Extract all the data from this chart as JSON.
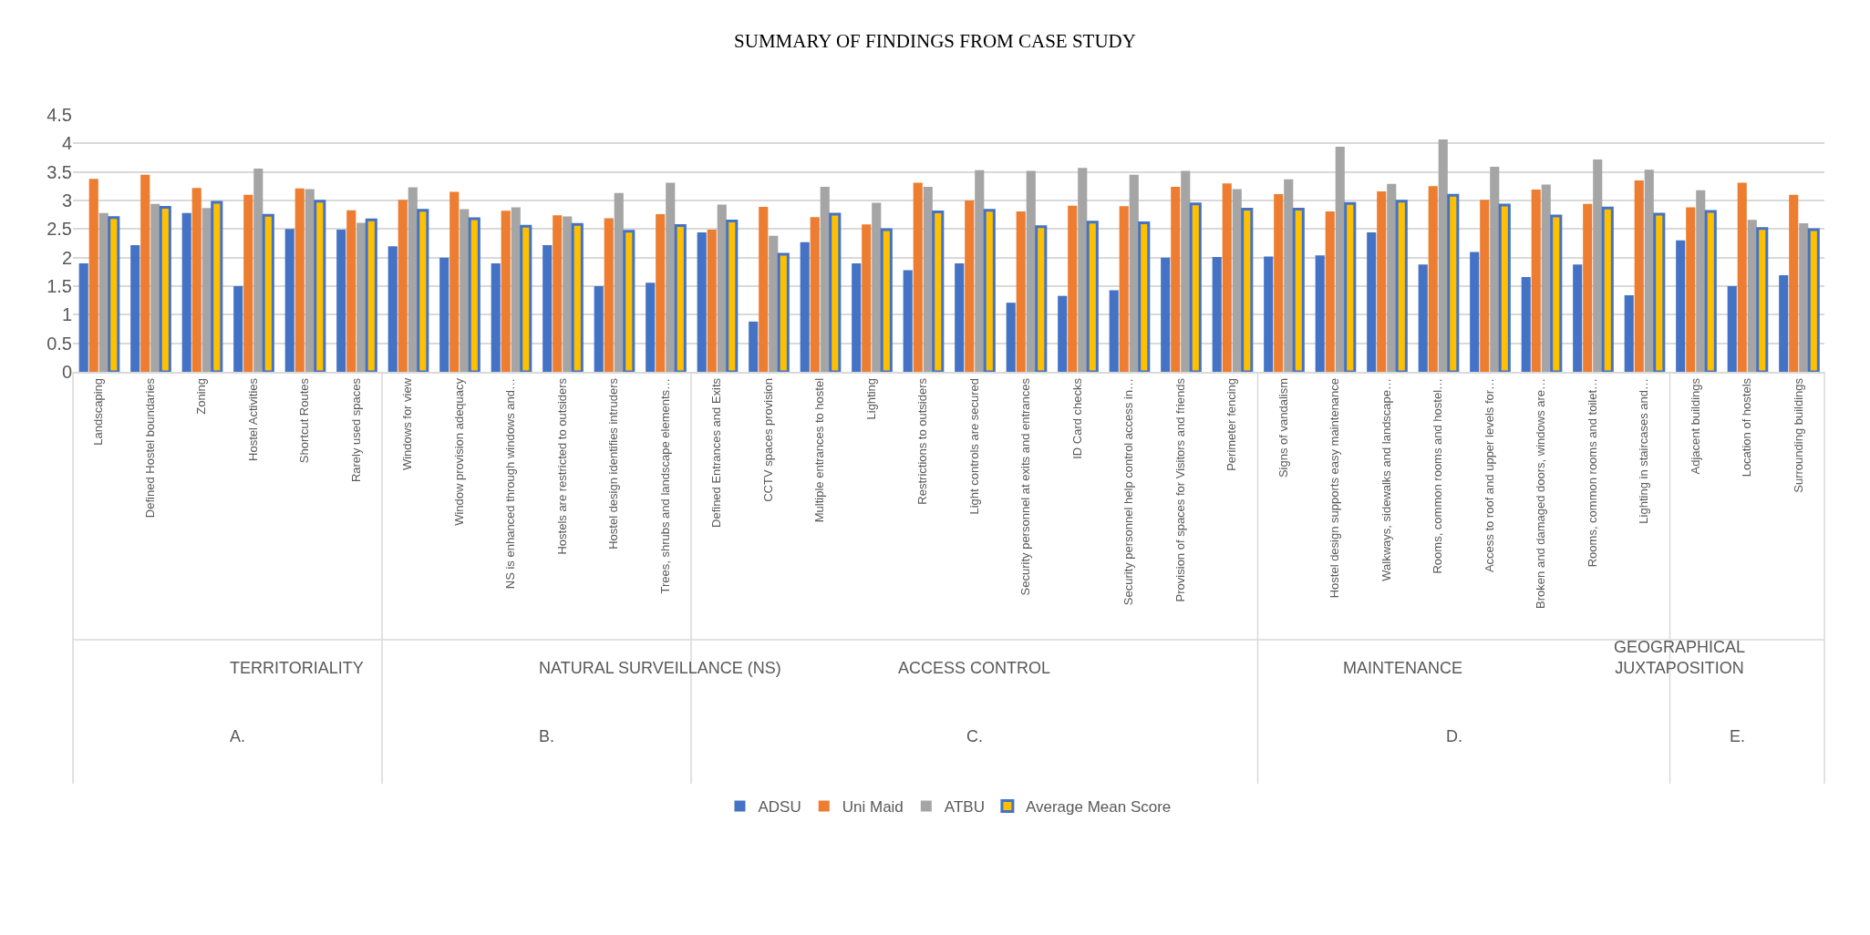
{
  "chart_data": [
    {
      "type": "bar",
      "xlabel": "TERRITORIALITY",
      "annotations": [
        "A."
      ],
      "categories": [
        "Landscaping",
        "Defined Hostel boundaries",
        "Zoning",
        "Hostel Activities",
        "Shortcut Routes",
        "Rarely used spaces"
      ],
      "series": [
        {
          "name": "ADSU",
          "color": "#4472c4",
          "values": [
            1.9,
            2.22,
            2.78,
            1.5,
            2.5,
            2.49
          ]
        },
        {
          "name": "Uni Maid",
          "color": "#ed7d31",
          "values": [
            3.38,
            3.45,
            3.22,
            3.1,
            3.21,
            2.83
          ]
        },
        {
          "name": "ATBU",
          "color": "#a5a5a5",
          "values": [
            2.78,
            2.94,
            2.87,
            3.56,
            3.2,
            2.61
          ]
        },
        {
          "name": "Average Mean Score",
          "color": "#ffc000",
          "values": [
            2.7,
            2.88,
            2.97,
            2.74,
            2.99,
            2.66
          ]
        }
      ],
      "ylim": [
        0,
        4.5
      ],
      "yticks": [
        0,
        0.5,
        1,
        1.5,
        2,
        2.5,
        3,
        3.5,
        4,
        4.5
      ],
      "grid": "y",
      "legend": "bottom"
    },
    {
      "type": "bar",
      "xlabel": "NATURAL SURVEILLANCE (NS)",
      "annotations": [
        "B."
      ],
      "categories": [
        "Windows for view",
        "Window provision adequacy",
        "NS is enhanced through windows and…",
        "Hostels are restricted to outsiders",
        "Hostel design identifies intruders",
        "Trees, shrubs and landscape elements…"
      ],
      "series": [
        {
          "name": "ADSU",
          "color": "#4472c4",
          "values": [
            2.2,
            2.0,
            1.9,
            2.22,
            1.5,
            1.56
          ]
        },
        {
          "name": "Uni Maid",
          "color": "#ed7d31",
          "values": [
            3.01,
            3.15,
            2.82,
            2.74,
            2.69,
            2.76
          ]
        },
        {
          "name": "ATBU",
          "color": "#a5a5a5",
          "values": [
            3.23,
            2.85,
            2.88,
            2.72,
            3.13,
            3.31
          ]
        },
        {
          "name": "Average Mean Score",
          "color": "#ffc000",
          "values": [
            2.83,
            2.68,
            2.55,
            2.58,
            2.46,
            2.56
          ]
        }
      ],
      "ylim": [
        0,
        4.5
      ],
      "yticks": [
        0,
        0.5,
        1,
        1.5,
        2,
        2.5,
        3,
        3.5,
        4,
        4.5
      ],
      "tick_labels": "x",
      "grid": "y",
      "legend": "bottom"
    },
    {
      "type": "bar",
      "title": "SUMMARY OF FINDINGS FROM CASE STUDY",
      "xlabel": "ACCESS CONTROL",
      "annotations": [
        "C."
      ],
      "categories": [
        "Defined Entrances and Exits",
        "CCTV spaces provision",
        "Multiple entrances to hostel",
        "Lighting",
        "Restrictions to outsiders",
        "Light controls are secured",
        "Security personnel at exits and entrances",
        "ID Card checks",
        "Security personnel help control access in…",
        "Provision of spaces for Visitors and friends",
        "Perimeter fencing"
      ],
      "series": [
        {
          "name": "ADSU",
          "color": "#4472c4",
          "values": [
            2.44,
            0.88,
            2.27,
            1.9,
            1.78,
            1.9,
            1.21,
            1.33,
            1.43,
            2.0,
            2.01
          ]
        },
        {
          "name": "Uni Maid",
          "color": "#ed7d31",
          "values": [
            2.49,
            2.89,
            2.71,
            2.58,
            3.31,
            3.0,
            2.81,
            2.91,
            2.9,
            3.24,
            3.3
          ]
        },
        {
          "name": "ATBU",
          "color": "#a5a5a5",
          "values": [
            2.93,
            2.38,
            3.24,
            2.96,
            3.24,
            3.53,
            3.52,
            3.57,
            3.45,
            3.52,
            3.2
          ]
        },
        {
          "name": "Average Mean Score",
          "color": "#ffc000",
          "values": [
            2.64,
            2.06,
            2.76,
            2.49,
            2.8,
            2.83,
            2.54,
            2.62,
            2.61,
            2.94,
            2.85
          ]
        }
      ],
      "ylim": [
        0,
        4.5
      ],
      "yticks": [
        0,
        0.5,
        1,
        1.5,
        2,
        2.5,
        3,
        3.5,
        4,
        4.5
      ],
      "tick_labels": "x",
      "grid": "y",
      "legend": "bottom"
    },
    {
      "type": "bar",
      "xlabel": "MAINTENANCE",
      "annotations": [
        "D."
      ],
      "categories": [
        "Signs of vandalism",
        "Hostel design supports easy maintenance",
        "Walkways, sidewalks and landscape…",
        "Rooms, common rooms and hostel…",
        "Access to roof and upper levels for…",
        "Broken and damaged doors, windows are…",
        "Rooms, common rooms and toilet…",
        "Lighting in staircases and…"
      ],
      "series": [
        {
          "name": "ADSU",
          "color": "#4472c4",
          "values": [
            2.02,
            2.04,
            2.44,
            1.88,
            2.1,
            1.66,
            1.88,
            1.34
          ]
        },
        {
          "name": "Uni Maid",
          "color": "#ed7d31",
          "values": [
            3.11,
            2.81,
            3.16,
            3.25,
            3.01,
            3.19,
            2.94,
            3.35
          ]
        },
        {
          "name": "ATBU",
          "color": "#a5a5a5",
          "values": [
            3.37,
            3.94,
            3.29,
            4.07,
            3.59,
            3.28,
            3.72,
            3.54
          ]
        },
        {
          "name": "Average Mean Score",
          "color": "#ffc000",
          "values": [
            2.85,
            2.95,
            2.99,
            3.09,
            2.92,
            2.73,
            2.87,
            2.76
          ]
        }
      ],
      "ylim": [
        0,
        4.5
      ],
      "yticks": [
        0,
        0.5,
        1,
        1.5,
        2,
        2.5,
        3,
        3.5,
        4,
        4.5
      ],
      "tick_labels": "x",
      "grid": "y",
      "legend": "bottom"
    },
    {
      "type": "bar",
      "xlabel": "GEOGRAPHICAL\nJUXTAPOSITION",
      "annotations": [
        "E."
      ],
      "categories": [
        "Adjacent buildings",
        "Location of hostels",
        "Surrounding buildings"
      ],
      "series": [
        {
          "name": "ADSU",
          "color": "#4472c4",
          "values": [
            2.3,
            1.5,
            1.69
          ]
        },
        {
          "name": "Uni Maid",
          "color": "#ed7d31",
          "values": [
            2.88,
            3.31,
            3.1
          ]
        },
        {
          "name": "ATBU",
          "color": "#a5a5a5",
          "values": [
            3.18,
            2.66,
            2.6
          ]
        },
        {
          "name": "Average Mean Score",
          "color": "#ffc000",
          "values": [
            2.81,
            2.51,
            2.49
          ]
        }
      ],
      "ylim": [
        0,
        4.5
      ],
      "yticks": [
        0,
        0.5,
        1,
        1.5,
        2,
        2.5,
        3,
        3.5,
        4,
        4.5
      ],
      "tick_labels": "x",
      "grid": "y",
      "legend": "bottom"
    }
  ]
}
